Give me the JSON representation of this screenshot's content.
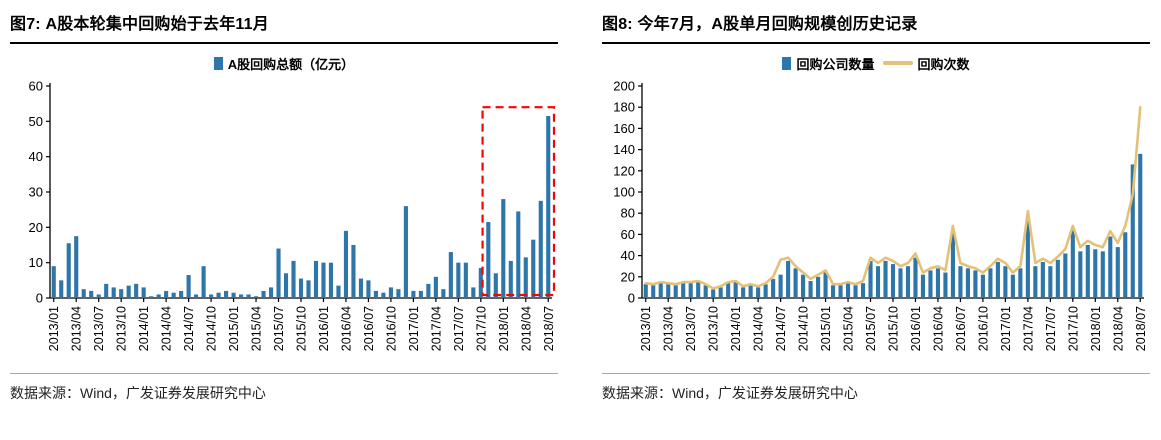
{
  "panels": [
    {
      "source": "数据来源：Wind，广发证券发展研究中心"
    },
    {
      "source": "数据来源：Wind，广发证券发展研究中心"
    }
  ],
  "colors": {
    "bar_blue": "#2E75A8",
    "line_yellow": "#E3C178",
    "highlight_red": "#FF0000",
    "axis_black": "#000000"
  },
  "chart_data": [
    {
      "type": "bar",
      "title": "图7:  A股本轮集中回购始于去年11月",
      "legend": [
        "A股回购总额（亿元）"
      ],
      "legend_position": "top-center",
      "grid": false,
      "ylim": [
        0,
        60
      ],
      "ytick_step": 10,
      "x_label_every": 3,
      "x": [
        "2013/01",
        "2013/02",
        "2013/03",
        "2013/04",
        "2013/05",
        "2013/06",
        "2013/07",
        "2013/08",
        "2013/09",
        "2013/10",
        "2013/11",
        "2013/12",
        "2014/01",
        "2014/02",
        "2014/03",
        "2014/04",
        "2014/05",
        "2014/06",
        "2014/07",
        "2014/08",
        "2014/09",
        "2014/10",
        "2014/11",
        "2014/12",
        "2015/01",
        "2015/02",
        "2015/03",
        "2015/04",
        "2015/05",
        "2015/06",
        "2015/07",
        "2015/08",
        "2015/09",
        "2015/10",
        "2015/11",
        "2015/12",
        "2016/01",
        "2016/02",
        "2016/03",
        "2016/04",
        "2016/05",
        "2016/06",
        "2016/07",
        "2016/08",
        "2016/09",
        "2016/10",
        "2016/11",
        "2016/12",
        "2017/01",
        "2017/02",
        "2017/03",
        "2017/04",
        "2017/05",
        "2017/06",
        "2017/07",
        "2017/08",
        "2017/09",
        "2017/10",
        "2017/11",
        "2017/12",
        "2018/01",
        "2018/02",
        "2018/03",
        "2018/04",
        "2018/05",
        "2018/06",
        "2018/07"
      ],
      "series": [
        {
          "name": "A股回购总额（亿元）",
          "type": "bar",
          "color": "#2E75A8",
          "values": [
            9,
            5,
            15.5,
            17.5,
            2.5,
            2,
            1,
            4,
            3,
            2.5,
            3.5,
            4,
            3,
            0.5,
            1,
            2,
            1.5,
            2,
            6.5,
            1,
            9,
            1,
            1.5,
            2,
            1.5,
            1,
            1,
            0.5,
            2,
            3,
            14,
            7,
            10.5,
            5.5,
            5,
            10.5,
            10,
            10,
            3.5,
            19,
            15,
            5.5,
            5,
            2,
            1.5,
            3,
            2.5,
            26,
            2,
            2,
            4,
            6,
            2.5,
            13,
            10,
            10,
            3,
            8.5,
            21.5,
            7,
            28,
            10.5,
            24.5,
            11.5,
            16.5,
            27.5,
            51.5
          ]
        }
      ],
      "highlight_box": {
        "from": "2017/11",
        "to": "2018/07",
        "top_value": 54,
        "color": "#FF0000",
        "style": "dashed"
      }
    },
    {
      "type": "bar+line",
      "title": "图8:  今年7月，A股单月回购规模创历史记录",
      "legend": [
        "回购公司数量",
        "回购次数"
      ],
      "legend_position": "top-center",
      "grid": false,
      "ylim": [
        0,
        200
      ],
      "ytick_step": 20,
      "x_label_every": 3,
      "x": [
        "2013/01",
        "2013/02",
        "2013/03",
        "2013/04",
        "2013/05",
        "2013/06",
        "2013/07",
        "2013/08",
        "2013/09",
        "2013/10",
        "2013/11",
        "2013/12",
        "2014/01",
        "2014/02",
        "2014/03",
        "2014/04",
        "2014/05",
        "2014/06",
        "2014/07",
        "2014/08",
        "2014/09",
        "2014/10",
        "2014/11",
        "2014/12",
        "2015/01",
        "2015/02",
        "2015/03",
        "2015/04",
        "2015/05",
        "2015/06",
        "2015/07",
        "2015/08",
        "2015/09",
        "2015/10",
        "2015/11",
        "2015/12",
        "2016/01",
        "2016/02",
        "2016/03",
        "2016/04",
        "2016/05",
        "2016/06",
        "2016/07",
        "2016/08",
        "2016/09",
        "2016/10",
        "2016/11",
        "2016/12",
        "2017/01",
        "2017/02",
        "2017/03",
        "2017/04",
        "2017/05",
        "2017/06",
        "2017/07",
        "2017/08",
        "2017/09",
        "2017/10",
        "2017/11",
        "2017/12",
        "2018/01",
        "2018/02",
        "2018/03",
        "2018/04",
        "2018/05",
        "2018/06",
        "2018/07"
      ],
      "series": [
        {
          "name": "回购公司数量",
          "type": "bar",
          "color": "#2E75A8",
          "values": [
            13,
            12,
            14,
            13,
            12,
            14,
            14,
            15,
            12,
            8,
            10,
            14,
            15,
            10,
            12,
            10,
            13,
            18,
            22,
            35,
            28,
            22,
            16,
            20,
            24,
            12,
            12,
            14,
            12,
            14,
            35,
            30,
            35,
            32,
            28,
            30,
            38,
            22,
            26,
            28,
            24,
            62,
            30,
            28,
            26,
            22,
            28,
            34,
            30,
            22,
            28,
            76,
            30,
            34,
            30,
            36,
            42,
            64,
            44,
            50,
            46,
            44,
            58,
            48,
            62,
            126,
            136
          ]
        },
        {
          "name": "回购次数",
          "type": "line",
          "color": "#E3C178",
          "values": [
            14,
            13,
            15,
            14,
            13,
            15,
            15,
            16,
            13,
            9,
            11,
            15,
            16,
            11,
            13,
            11,
            14,
            20,
            36,
            38,
            30,
            24,
            18,
            22,
            26,
            13,
            13,
            15,
            13,
            16,
            38,
            33,
            38,
            35,
            30,
            33,
            42,
            24,
            28,
            30,
            26,
            68,
            33,
            30,
            28,
            24,
            30,
            37,
            33,
            24,
            30,
            82,
            33,
            37,
            33,
            39,
            46,
            68,
            48,
            54,
            50,
            48,
            63,
            52,
            68,
            98,
            180
          ]
        }
      ]
    }
  ]
}
